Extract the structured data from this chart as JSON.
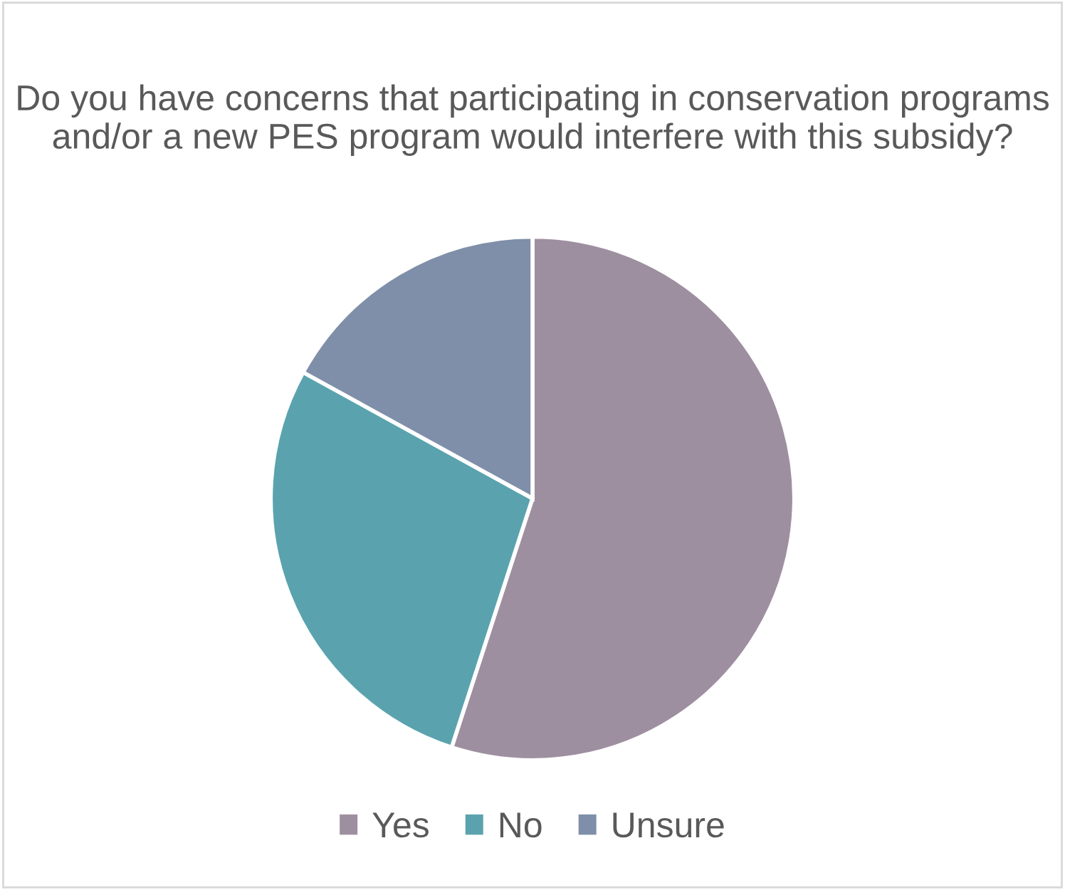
{
  "chart_data": {
    "type": "pie",
    "title": "Do you have concerns that participating in conservation programs and/or a new PES program would interfere with this subsidy?",
    "categories": [
      "Yes",
      "No",
      "Unsure"
    ],
    "values": [
      55,
      28,
      17
    ],
    "colors": [
      "#9e8fa0",
      "#5aa3ae",
      "#7f8fa9"
    ],
    "legend": "bottom"
  }
}
